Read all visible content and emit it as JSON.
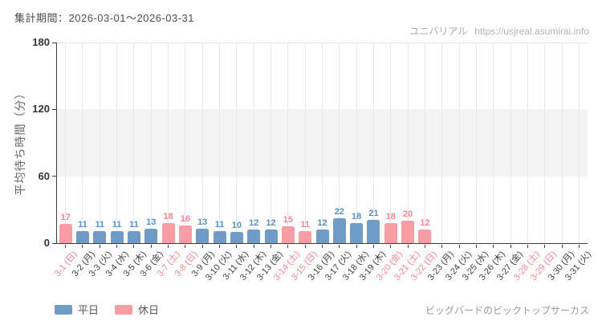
{
  "header": {
    "watermark_brand": "ユニバリアル",
    "watermark_url": "https://usjreal.asumirai.info"
  },
  "footer": {
    "attraction_name": "ビッグバードのビックトップサーカス"
  },
  "legend": {
    "weekday_label": "平日",
    "holiday_label": "休日"
  },
  "chart_data": {
    "type": "bar",
    "title": "集計期間：2026-03-01～2026-03-31",
    "xlabel": "",
    "ylabel": "平均待ち時間（分）",
    "ylim": [
      0,
      180
    ],
    "yticks": [
      0,
      60,
      120,
      180
    ],
    "shaded_band_y": [
      60,
      120
    ],
    "grid": true,
    "legend_position": "bottom-left",
    "categories": [
      "3-1 (日)",
      "3-2 (月)",
      "3-3 (火)",
      "3-4 (水)",
      "3-5 (木)",
      "3-6 (金)",
      "3-7 (土)",
      "3-8 (日)",
      "3-9 (月)",
      "3-10 (火)",
      "3-11 (水)",
      "3-12 (木)",
      "3-13 (金)",
      "3-14 (土)",
      "3-15 (日)",
      "3-16 (月)",
      "3-17 (火)",
      "3-18 (水)",
      "3-19 (木)",
      "3-20 (金)",
      "3-21 (土)",
      "3-22 (日)",
      "3-23 (月)",
      "3-24 (火)",
      "3-25 (水)",
      "3-26 (木)",
      "3-27 (金)",
      "3-28 (土)",
      "3-29 (日)",
      "3-30 (月)",
      "3-31 (火)"
    ],
    "day_type": [
      "holiday",
      "weekday",
      "weekday",
      "weekday",
      "weekday",
      "weekday",
      "holiday",
      "holiday",
      "weekday",
      "weekday",
      "weekday",
      "weekday",
      "weekday",
      "holiday",
      "holiday",
      "weekday",
      "weekday",
      "weekday",
      "weekday",
      "holiday",
      "holiday",
      "holiday",
      "weekday",
      "weekday",
      "weekday",
      "weekday",
      "weekday",
      "holiday",
      "holiday",
      "weekday",
      "weekday"
    ],
    "values": [
      17,
      11,
      11,
      11,
      11,
      13,
      18,
      16,
      13,
      11,
      10,
      12,
      12,
      15,
      11,
      12,
      22,
      18,
      21,
      18,
      20,
      12,
      null,
      null,
      null,
      null,
      null,
      null,
      null,
      null,
      null
    ],
    "series": [
      {
        "name": "平日",
        "dates_with_values": "3-2:11, 3-3:11, 3-4:11, 3-5:11, 3-6:13, 3-9:13, 3-10:11, 3-11:10, 3-12:12, 3-13:12, 3-16:12, 3-17:22, 3-18:18, 3-19:21"
      },
      {
        "name": "休日",
        "dates_with_values": "3-1:17, 3-7:18, 3-8:16, 3-14:15, 3-15:11, 3-20:18, 3-21:20, 3-22:12"
      }
    ],
    "colors": {
      "weekday": "#6f9bc7",
      "holiday": "#f99da4",
      "weekday_value": "#568fc6",
      "holiday_value": "#f9868f",
      "weekday_text": "#3d3d3d",
      "holiday_text": "#f5868d",
      "axis": "#3c3c3c",
      "grid": "#e8e8e8",
      "band": "#f3f3f3"
    }
  }
}
